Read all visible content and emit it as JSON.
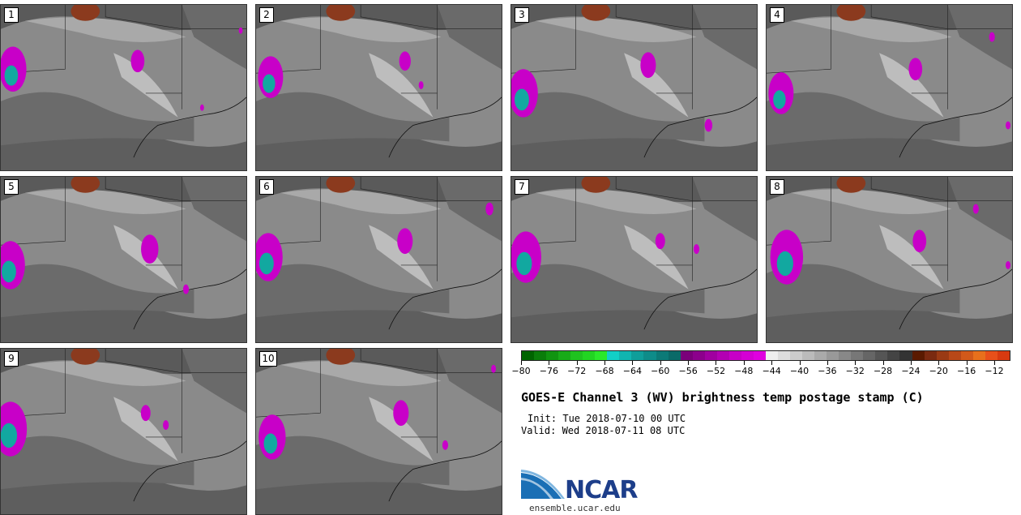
{
  "panels": [
    {
      "label": "1"
    },
    {
      "label": "2"
    },
    {
      "label": "3"
    },
    {
      "label": "4"
    },
    {
      "label": "5"
    },
    {
      "label": "6"
    },
    {
      "label": "7"
    },
    {
      "label": "8"
    },
    {
      "label": "9"
    },
    {
      "label": "10"
    }
  ],
  "colorbar": {
    "colors": [
      "#006400",
      "#0a7d0a",
      "#109410",
      "#18ab18",
      "#1fc21f",
      "#22d422",
      "#2ae82a",
      "#12cfc6",
      "#11b5b0",
      "#0f9e9a",
      "#0e8c89",
      "#0c7a77",
      "#0a6a68",
      "#7a007a",
      "#8c008c",
      "#a000a0",
      "#b300b3",
      "#c700c7",
      "#d400d4",
      "#e000e0",
      "#eeeeee",
      "#dddddd",
      "#cccccc",
      "#bbbbbb",
      "#aaaaaa",
      "#999999",
      "#888888",
      "#777777",
      "#666666",
      "#555555",
      "#444444",
      "#333333",
      "#5a1a00",
      "#7a2a10",
      "#9a3a14",
      "#b84818",
      "#d2591a",
      "#e8701c",
      "#e8501a",
      "#d83a10"
    ],
    "ticks": [
      "−80",
      "−76",
      "−72",
      "−68",
      "−64",
      "−60",
      "−56",
      "−52",
      "−48",
      "−44",
      "−40",
      "−36",
      "−32",
      "−28",
      "−24",
      "−20",
      "−16",
      "−12"
    ],
    "min": -80,
    "max": -10
  },
  "title": "GOES-E Channel 3 (WV) brightness temp postage stamp (C)",
  "init": "Init: Tue 2018-07-10 00 UTC",
  "valid": "Valid: Wed 2018-07-11 08 UTC",
  "logo": "NCAR",
  "site": "ensemble.ucar.edu"
}
